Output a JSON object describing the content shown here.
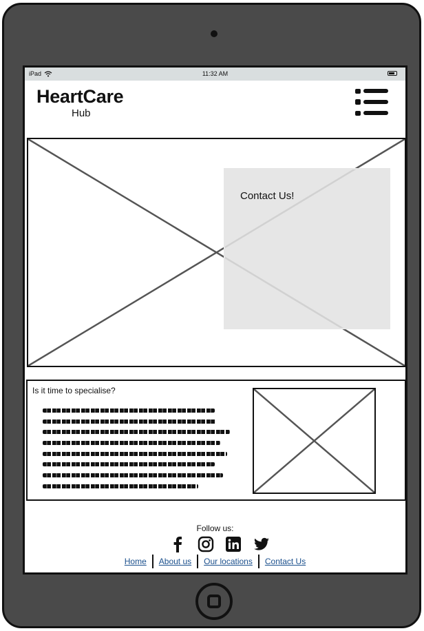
{
  "status_bar": {
    "device": "iPad",
    "time": "11:32 AM",
    "icons": [
      "wifi-icon",
      "battery-icon"
    ]
  },
  "header": {
    "logo_title": "HeartCare",
    "logo_subtitle": "Hub",
    "menu_icon": "hamburger-list-icon"
  },
  "hero": {
    "image": "image-placeholder",
    "contact_label": "Contact Us!"
  },
  "specialise": {
    "heading": "Is it time to specialise?",
    "body_lines": 8,
    "image": "image-placeholder"
  },
  "footer": {
    "follow_label": "Follow us:",
    "social_icons": [
      "facebook-icon",
      "instagram-icon",
      "linkedin-icon",
      "twitter-icon"
    ],
    "nav": {
      "home": "Home",
      "about": "About us",
      "locations": "Our locations",
      "contact": "Contact Us"
    },
    "link_color": "#1a4f8c"
  },
  "colors": {
    "device_frame": "#4a4a4a",
    "status_bar": "#d9dedf",
    "contact_box": "#e2e2e2"
  }
}
